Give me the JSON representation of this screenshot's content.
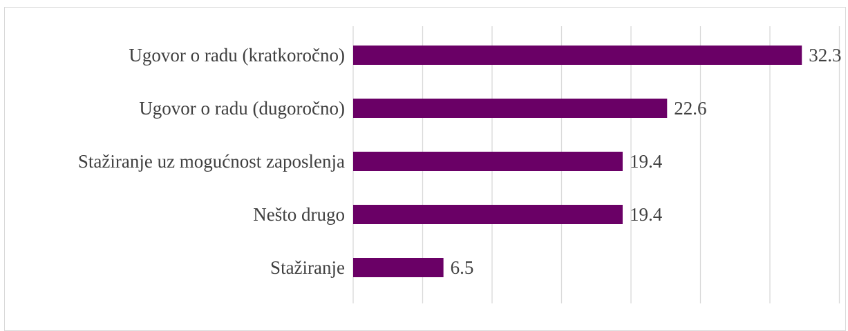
{
  "chart_data": {
    "type": "bar",
    "orientation": "horizontal",
    "categories": [
      "Ugovor o radu (kratkoročno)",
      "Ugovor o radu (dugoročno)",
      "Stažiranje uz mogućnost zaposlenja",
      "Nešto drugo",
      "Stažiranje"
    ],
    "values": [
      32.3,
      22.6,
      19.4,
      19.4,
      6.5
    ],
    "title": "",
    "xlabel": "",
    "ylabel": "",
    "xlim": [
      0,
      35
    ],
    "grid": true,
    "legend": "none",
    "bar_color": "#6a0066"
  }
}
